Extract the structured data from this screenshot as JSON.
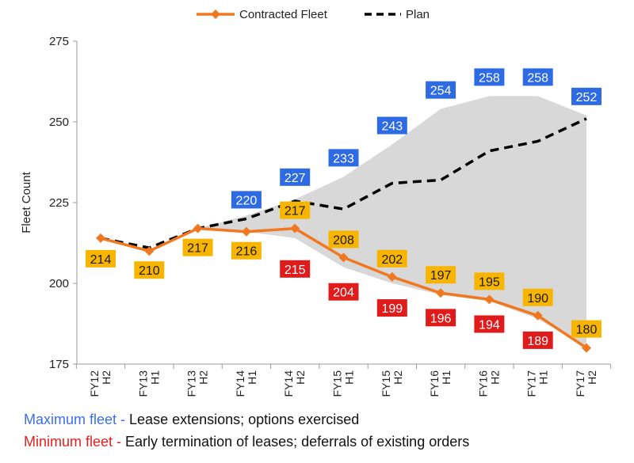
{
  "chart_data": {
    "type": "line",
    "categories": [
      [
        "FY12",
        "H2"
      ],
      [
        "FY13",
        "H1"
      ],
      [
        "FY13",
        "H2"
      ],
      [
        "FY14",
        "H1"
      ],
      [
        "FY14",
        "H2"
      ],
      [
        "FY15",
        "H1"
      ],
      [
        "FY15",
        "H2"
      ],
      [
        "FY16",
        "H1"
      ],
      [
        "FY16",
        "H2"
      ],
      [
        "FY17",
        "H1"
      ],
      [
        "FY17",
        "H2"
      ]
    ],
    "ylabel": "Fleet Count",
    "ylim": [
      175,
      275
    ],
    "yticks": [
      175,
      200,
      225,
      250,
      275
    ],
    "legend": {
      "placement": "top-center",
      "items": [
        "Contracted Fleet",
        "Plan"
      ]
    },
    "series": [
      {
        "name": "Contracted Fleet",
        "color": "#f07820",
        "marker": "diamond",
        "values": [
          214,
          210,
          217,
          216,
          217,
          208,
          202,
          197,
          195,
          190,
          180
        ],
        "labels": [
          "214",
          "210",
          "217",
          "216",
          "217",
          "208",
          "202",
          "197",
          "195",
          "190",
          "180"
        ]
      },
      {
        "name": "Plan",
        "color": "#000000",
        "style": "dashed",
        "values": [
          214,
          211,
          217,
          220,
          225.5,
          223,
          231,
          232,
          241,
          244,
          251
        ]
      },
      {
        "name": "Maximum fleet",
        "color": "#2d6ae3",
        "values": [
          null,
          null,
          null,
          220,
          227,
          233,
          243,
          254,
          258,
          258,
          252
        ],
        "labels": [
          null,
          null,
          null,
          "220",
          "227",
          "233",
          "243",
          "254",
          "258",
          "258",
          "252"
        ]
      },
      {
        "name": "Minimum fleet",
        "color": "#e01b1b",
        "values": [
          null,
          null,
          null,
          null,
          215,
          204,
          199,
          196,
          194,
          189,
          null
        ],
        "labels": [
          null,
          null,
          null,
          null,
          "215",
          "204",
          "199",
          "196",
          "194",
          "189",
          null
        ]
      }
    ],
    "range_band": {
      "color": "#d8d8d8",
      "upper": [
        null,
        null,
        217,
        221,
        226,
        233,
        243,
        254,
        258,
        258,
        252
      ],
      "lower": [
        null,
        null,
        217,
        216,
        214,
        205,
        200,
        196.5,
        194.5,
        189,
        180
      ]
    },
    "grid": false
  },
  "footnotes": {
    "max_label": "Maximum fleet -",
    "max_text": " Lease extensions; options exercised",
    "min_label": "Minimum fleet -",
    "min_text": " Early termination of leases; deferrals of existing orders",
    "max_color": "#3a6fe8",
    "min_color": "#e52020"
  }
}
